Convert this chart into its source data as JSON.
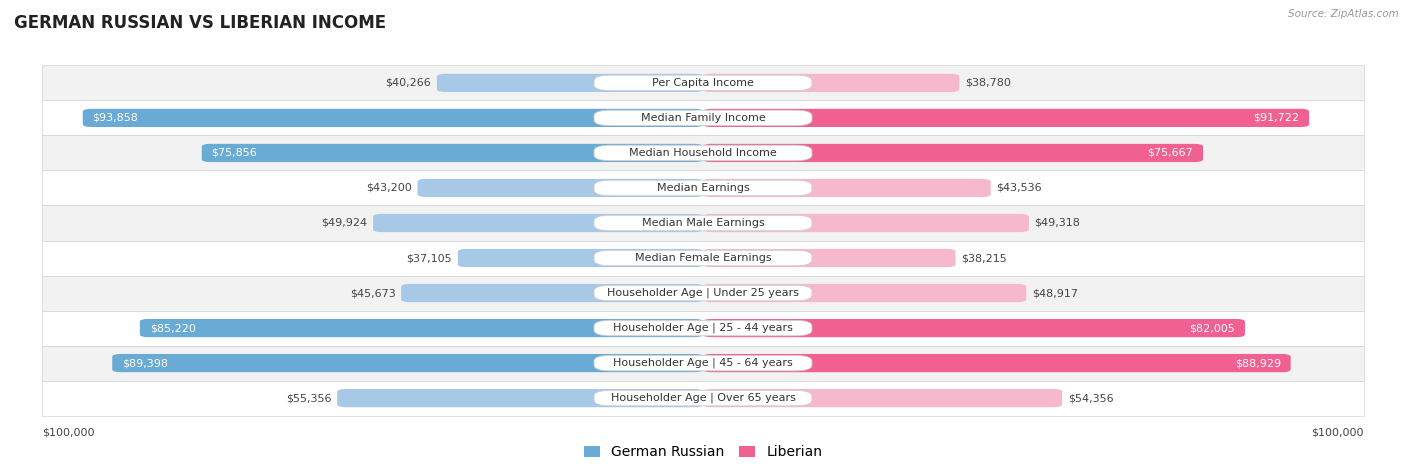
{
  "title": "GERMAN RUSSIAN VS LIBERIAN INCOME",
  "source": "Source: ZipAtlas.com",
  "categories": [
    "Per Capita Income",
    "Median Family Income",
    "Median Household Income",
    "Median Earnings",
    "Median Male Earnings",
    "Median Female Earnings",
    "Householder Age | Under 25 years",
    "Householder Age | 25 - 44 years",
    "Householder Age | 45 - 64 years",
    "Householder Age | Over 65 years"
  ],
  "german_russian": [
    40266,
    93858,
    75856,
    43200,
    49924,
    37105,
    45673,
    85220,
    89398,
    55356
  ],
  "liberian": [
    38780,
    91722,
    75667,
    43536,
    49318,
    38215,
    48917,
    82005,
    88929,
    54356
  ],
  "max_value": 100000,
  "gr_color_light": "#a8c8e8",
  "gr_color_dark": "#6aabd6",
  "lib_color_light": "#f5b8cc",
  "lib_color_dark": "#f06090",
  "row_bg_even": "#f2f2f2",
  "row_bg_odd": "#ffffff",
  "title_fontsize": 12,
  "value_fontsize": 8,
  "cat_fontsize": 8,
  "legend_fontsize": 10,
  "threshold": 75000
}
